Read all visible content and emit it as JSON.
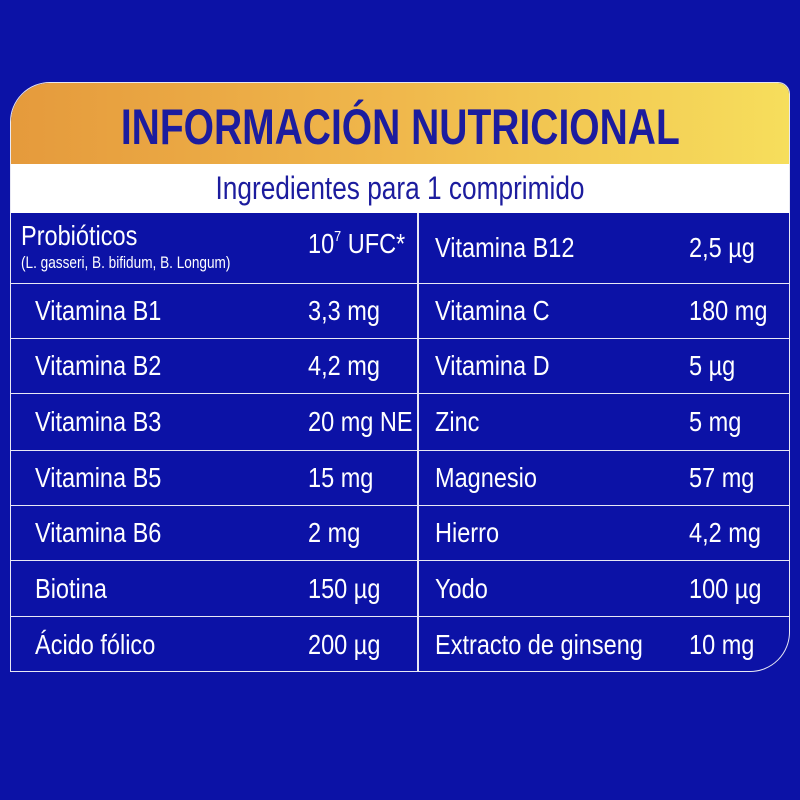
{
  "title": "INFORMACIÓN NUTRICIONAL",
  "subtitle": "Ingredientes para 1 comprimido",
  "first_row": {
    "left": {
      "name": "Probióticos",
      "detail": "(L. gasseri, B. bifidum, B. Longum)",
      "value_base": "10",
      "value_exp": "7",
      "value_unit": " UFC*"
    },
    "right": {
      "name": "Vitamina B12",
      "value": "2,5 µg"
    }
  },
  "rows": [
    {
      "left_name": "Vitamina B1",
      "left_value": "3,3 mg",
      "right_name": "Vitamina C",
      "right_value": "180 mg"
    },
    {
      "left_name": "Vitamina B2",
      "left_value": "4,2 mg",
      "right_name": "Vitamina D",
      "right_value": "5 µg"
    },
    {
      "left_name": "Vitamina B3",
      "left_value": "20 mg NE",
      "right_name": "Zinc",
      "right_value": "5 mg"
    },
    {
      "left_name": "Vitamina B5",
      "left_value": "15 mg",
      "right_name": "Magnesio",
      "right_value": "57 mg"
    },
    {
      "left_name": "Vitamina B6",
      "left_value": "2 mg",
      "right_name": "Hierro",
      "right_value": "4,2 mg"
    },
    {
      "left_name": "Biotina",
      "left_value": "150 µg",
      "right_name": "Yodo",
      "right_value": "100 µg"
    },
    {
      "left_name": "Ácido fólico",
      "left_value": "200 µg",
      "right_name": "Extracto de ginseng",
      "right_value": "10 mg"
    }
  ],
  "colors": {
    "background": "#0c12a6",
    "title": "#1c1c9e",
    "header_gradient_start": "#e59a3c",
    "header_gradient_end": "#f6de5c"
  }
}
